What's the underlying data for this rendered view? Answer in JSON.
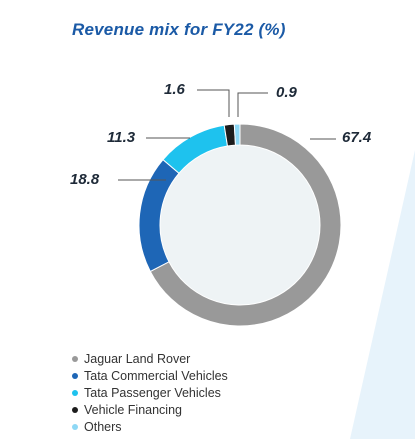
{
  "colors": {
    "title": "#1b5aa6",
    "label": "#1e2a38",
    "leader": "#555555",
    "inner_fill": "#eef3f5",
    "backdrop": "#e7f3fb"
  },
  "chart_data": {
    "type": "pie",
    "variant": "donut",
    "title": "Revenue mix for FY22 (%)",
    "slices": [
      {
        "name": "Jaguar Land Rover",
        "value": 67.4,
        "label": "67.4",
        "color": "#999999"
      },
      {
        "name": "Tata Commercial Vehicles",
        "value": 18.8,
        "label": "18.8",
        "color": "#1e66b6"
      },
      {
        "name": "Tata Passenger Vehicles",
        "value": 11.3,
        "label": "11.3",
        "color": "#1ec2ee"
      },
      {
        "name": "Vehicle Financing",
        "value": 1.6,
        "label": "1.6",
        "color": "#1c1c1c"
      },
      {
        "name": "Others",
        "value": 0.9,
        "label": "0.9",
        "color": "#8ed8f5"
      }
    ],
    "legend_position": "bottom-left"
  }
}
